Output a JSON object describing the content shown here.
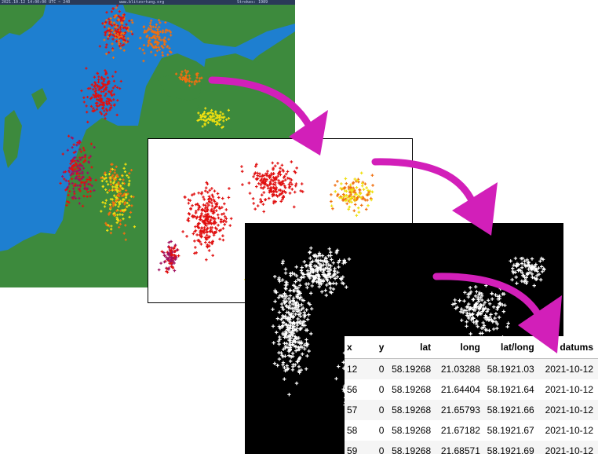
{
  "map": {
    "header_left": "2021.10.12 14:00:00 UTC ~ 240",
    "header_center": "www.blitzortung.org",
    "header_right": "Strokes: 1989"
  },
  "table": {
    "columns": [
      "x",
      "y",
      "lat",
      "long",
      "lat/long",
      "datums"
    ],
    "rows": [
      [
        "12",
        "0",
        "58.19268",
        "21.03288",
        "58.1921.03",
        "2021-10-12"
      ],
      [
        "56",
        "0",
        "58.19268",
        "21.64404",
        "58.1921.64",
        "2021-10-12"
      ],
      [
        "57",
        "0",
        "58.19268",
        "21.65793",
        "58.1921.66",
        "2021-10-12"
      ],
      [
        "58",
        "0",
        "58.19268",
        "21.67182",
        "58.1921.67",
        "2021-10-12"
      ],
      [
        "59",
        "0",
        "58.19268",
        "21.68571",
        "58.1921.69",
        "2021-10-12"
      ]
    ]
  },
  "colors": {
    "land": "#3d8a3d",
    "sea": "#1e7fd0",
    "arrow": "#d21fb9",
    "strike_red": "#e01010",
    "strike_orange": "#f07010",
    "strike_yellow": "#f0e010",
    "strike_purple": "#a01060"
  }
}
